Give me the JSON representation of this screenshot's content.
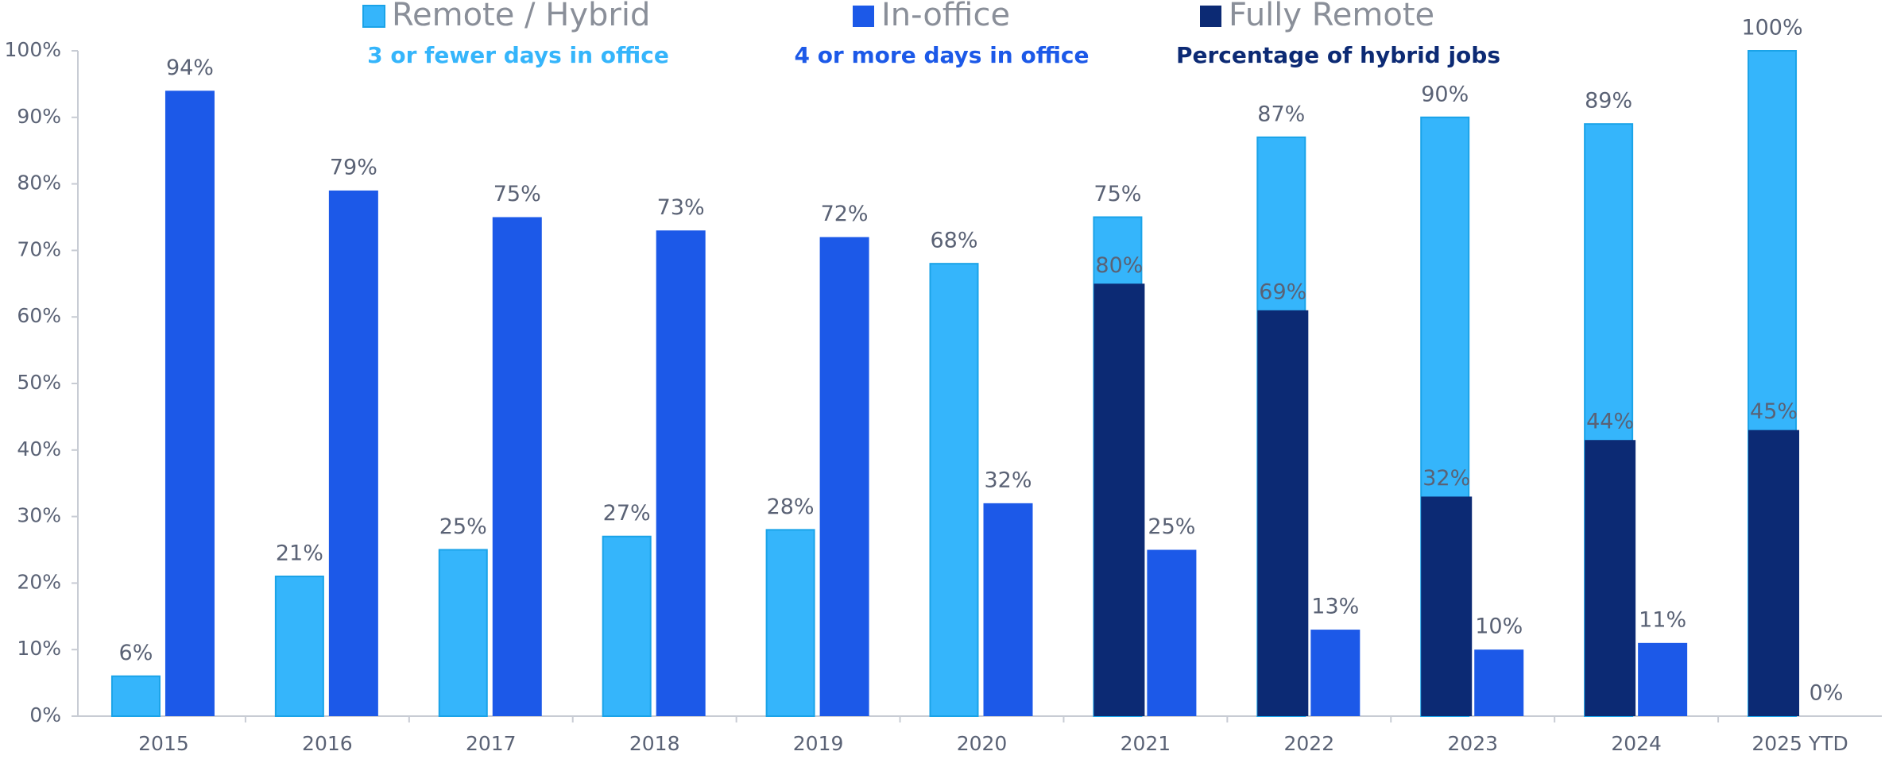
{
  "chart_data": {
    "type": "bar",
    "categories": [
      "2015",
      "2016",
      "2017",
      "2018",
      "2019",
      "2020",
      "2021",
      "2022",
      "2023",
      "2024",
      "2025 YTD"
    ],
    "ylim": [
      0,
      100
    ],
    "yticks": [
      {
        "value": 0,
        "label": "0%"
      },
      {
        "value": 10,
        "label": "10%"
      },
      {
        "value": 20,
        "label": "20%"
      },
      {
        "value": 30,
        "label": "30%"
      },
      {
        "value": 40,
        "label": "40%"
      },
      {
        "value": 50,
        "label": "50%"
      },
      {
        "value": 60,
        "label": "60%"
      },
      {
        "value": 70,
        "label": "70%"
      },
      {
        "value": 80,
        "label": "80%"
      },
      {
        "value": 90,
        "label": "90%"
      },
      {
        "value": 100,
        "label": "100%"
      }
    ],
    "series": [
      {
        "name": "Remote / Hybrid",
        "subtitle": "3 or fewer days in office",
        "color": "#35b5fb",
        "values": [
          6,
          21,
          25,
          27,
          28,
          68,
          75,
          87,
          90,
          89,
          100
        ],
        "value_labels": [
          "6%",
          "21%",
          "25%",
          "27%",
          "28%",
          "68%",
          "75%",
          "87%",
          "90%",
          "89%",
          "100%"
        ]
      },
      {
        "name": "In-office",
        "subtitle": "4 or more days in office",
        "color": "#1c59e8",
        "values": [
          94,
          79,
          75,
          73,
          72,
          32,
          25,
          13,
          10,
          11,
          0
        ],
        "value_labels": [
          "94%",
          "79%",
          "75%",
          "73%",
          "72%",
          "32%",
          "25%",
          "13%",
          "10%",
          "11%",
          "0%"
        ]
      },
      {
        "name": "Fully Remote",
        "subtitle": "Percentage of hybrid jobs",
        "color": "#0c2a74",
        "values": [
          null,
          null,
          null,
          null,
          null,
          null,
          65,
          61,
          33,
          41.5,
          43
        ],
        "hybrid_pct": [
          null,
          null,
          null,
          null,
          null,
          null,
          80,
          69,
          32,
          44,
          45
        ],
        "hybrid_pct_labels": [
          null,
          null,
          null,
          null,
          null,
          null,
          "80%",
          "69%",
          "32%",
          "44%",
          "45%"
        ]
      }
    ]
  }
}
